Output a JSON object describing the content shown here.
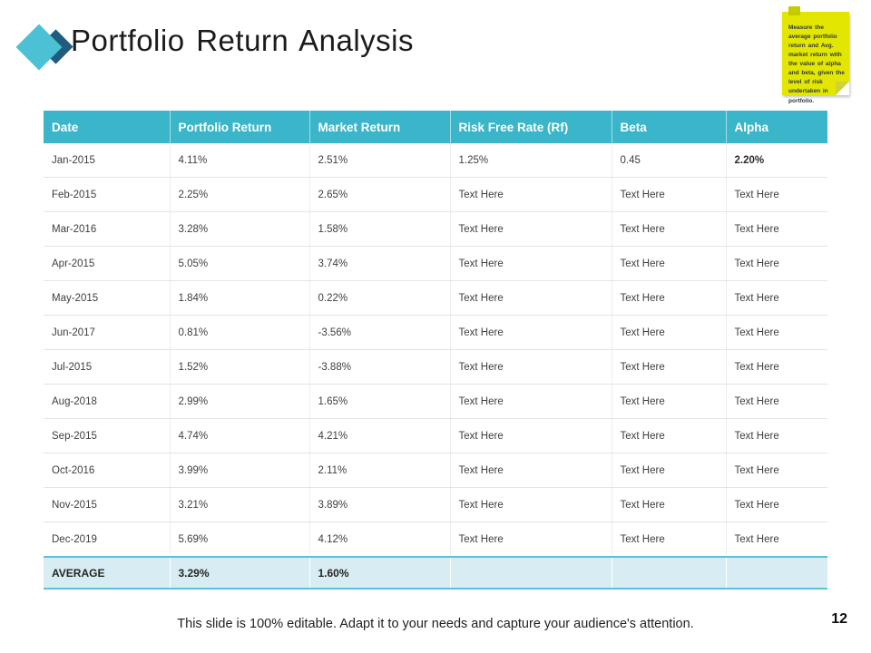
{
  "slide": {
    "title": "Portfolio Return Analysis",
    "footer_note": "This slide is 100% editable. Adapt it to your needs and capture your audience's attention.",
    "page_number": "12"
  },
  "sticky_note": {
    "text": "Measure the average portfolio return and Avg. market return with the value of alpha and beta, given the level of risk undertaken in portfolio."
  },
  "table": {
    "columns": [
      "Date",
      "Portfolio Return",
      "Market Return",
      "Risk Free Rate (Rf)",
      "Beta",
      "Alpha"
    ],
    "rows": [
      [
        "Jan-2015",
        "4.11%",
        "2.51%",
        "1.25%",
        "0.45",
        "2.20%"
      ],
      [
        "Feb-2015",
        "2.25%",
        "2.65%",
        "Text Here",
        "Text Here",
        "Text Here"
      ],
      [
        "Mar-2016",
        "3.28%",
        "1.58%",
        "Text Here",
        "Text Here",
        "Text Here"
      ],
      [
        "Apr-2015",
        "5.05%",
        "3.74%",
        "Text Here",
        "Text Here",
        "Text Here"
      ],
      [
        "May-2015",
        "1.84%",
        "0.22%",
        "Text Here",
        "Text Here",
        "Text Here"
      ],
      [
        "Jun-2017",
        "0.81%",
        "-3.56%",
        "Text Here",
        "Text Here",
        "Text Here"
      ],
      [
        "Jul-2015",
        "1.52%",
        "-3.88%",
        "Text Here",
        "Text Here",
        "Text Here"
      ],
      [
        "Aug-2018",
        "2.99%",
        "1.65%",
        "Text Here",
        "Text Here",
        "Text Here"
      ],
      [
        "Sep-2015",
        "4.74%",
        "4.21%",
        "Text Here",
        "Text Here",
        "Text Here"
      ],
      [
        "Oct-2016",
        "3.99%",
        "2.11%",
        "Text Here",
        "Text Here",
        "Text Here"
      ],
      [
        "Nov-2015",
        "3.21%",
        "3.89%",
        "Text Here",
        "Text Here",
        "Text Here"
      ],
      [
        "Dec-2019",
        "5.69%",
        "4.12%",
        "Text Here",
        "Text Here",
        "Text Here"
      ]
    ],
    "bold_cells": [
      [
        0,
        5
      ]
    ],
    "average_row": [
      "AVERAGE",
      "3.29%",
      "1.60%",
      "",
      "",
      ""
    ]
  },
  "colors": {
    "header_bg": "#3ab5c9",
    "average_bg": "#d7edf3",
    "accent_teal": "#5ac2d4",
    "note_yellow": "#e2e600",
    "logo_teal": "#4cc0d4",
    "logo_dark_blue": "#1f5c7d"
  }
}
